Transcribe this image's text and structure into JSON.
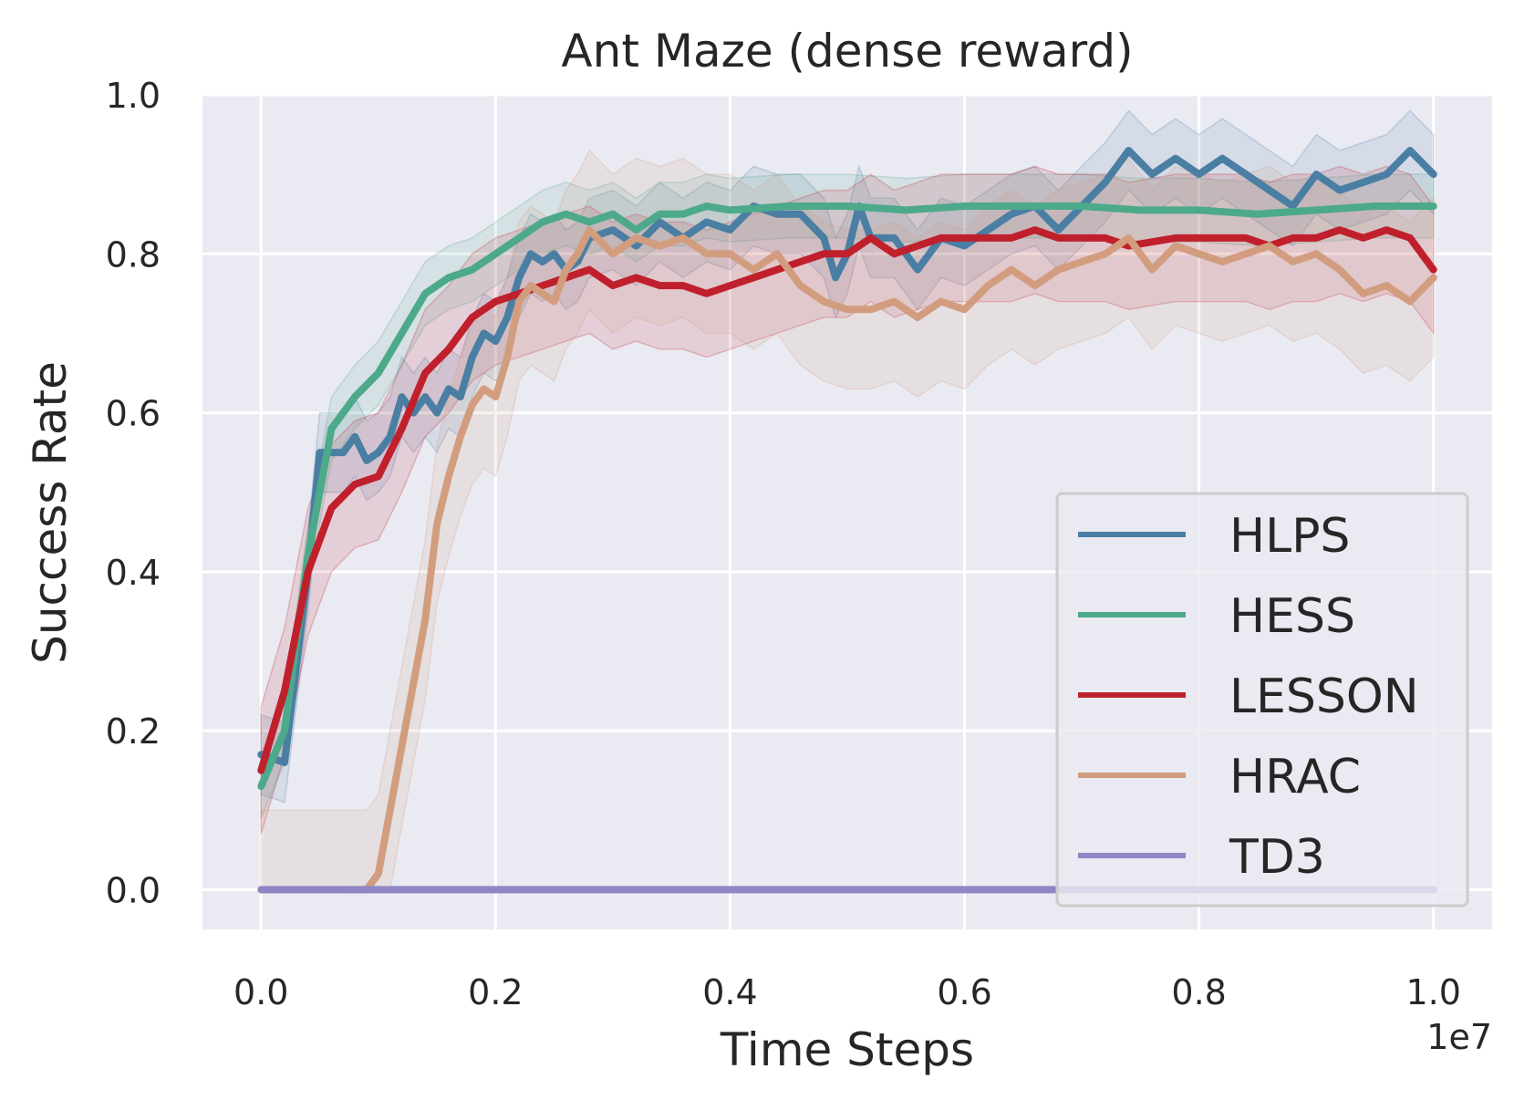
{
  "chart_data": {
    "type": "line",
    "title": "Ant Maze (dense reward)",
    "xlabel": "Time Steps",
    "ylabel": "Success Rate",
    "x_offset_text": "1e7",
    "xlim": [
      -0.05,
      1.05
    ],
    "ylim": [
      -0.05,
      1.0
    ],
    "xticks": [
      0.0,
      0.2,
      0.4,
      0.6,
      0.8,
      1.0
    ],
    "xtick_labels": [
      "0.0",
      "0.2",
      "0.4",
      "0.6",
      "0.8",
      "1.0"
    ],
    "yticks": [
      0.0,
      0.2,
      0.4,
      0.6,
      0.8,
      1.0
    ],
    "ytick_labels": [
      "0.0",
      "0.2",
      "0.4",
      "0.6",
      "0.8",
      "1.0"
    ],
    "grid": true,
    "legend_position": "lower-right",
    "series": [
      {
        "name": "HLPS",
        "color": "#4a7fa3",
        "x": [
          0.0,
          0.02,
          0.04,
          0.05,
          0.06,
          0.07,
          0.08,
          0.09,
          0.1,
          0.11,
          0.12,
          0.13,
          0.14,
          0.15,
          0.16,
          0.17,
          0.18,
          0.19,
          0.2,
          0.21,
          0.22,
          0.23,
          0.24,
          0.25,
          0.26,
          0.27,
          0.28,
          0.3,
          0.32,
          0.34,
          0.36,
          0.38,
          0.4,
          0.42,
          0.44,
          0.46,
          0.48,
          0.49,
          0.5,
          0.51,
          0.52,
          0.54,
          0.56,
          0.58,
          0.6,
          0.62,
          0.64,
          0.66,
          0.68,
          0.7,
          0.72,
          0.74,
          0.76,
          0.78,
          0.8,
          0.82,
          0.84,
          0.86,
          0.88,
          0.9,
          0.92,
          0.94,
          0.96,
          0.98,
          1.0
        ],
        "y": [
          0.17,
          0.16,
          0.4,
          0.55,
          0.55,
          0.55,
          0.57,
          0.54,
          0.55,
          0.57,
          0.62,
          0.6,
          0.62,
          0.6,
          0.63,
          0.62,
          0.67,
          0.7,
          0.69,
          0.72,
          0.77,
          0.8,
          0.79,
          0.8,
          0.78,
          0.79,
          0.82,
          0.83,
          0.81,
          0.84,
          0.82,
          0.84,
          0.83,
          0.86,
          0.85,
          0.85,
          0.82,
          0.77,
          0.8,
          0.86,
          0.82,
          0.82,
          0.78,
          0.82,
          0.81,
          0.83,
          0.85,
          0.86,
          0.83,
          0.86,
          0.89,
          0.93,
          0.9,
          0.92,
          0.9,
          0.92,
          0.9,
          0.88,
          0.86,
          0.9,
          0.88,
          0.89,
          0.9,
          0.93,
          0.9
        ],
        "band_width": 0.05
      },
      {
        "name": "HESS",
        "color": "#4ca989",
        "x": [
          0.0,
          0.02,
          0.04,
          0.06,
          0.08,
          0.1,
          0.12,
          0.14,
          0.16,
          0.18,
          0.2,
          0.22,
          0.24,
          0.26,
          0.28,
          0.3,
          0.32,
          0.34,
          0.36,
          0.38,
          0.4,
          0.45,
          0.5,
          0.55,
          0.6,
          0.65,
          0.7,
          0.75,
          0.8,
          0.85,
          0.9,
          0.95,
          1.0
        ],
        "y": [
          0.13,
          0.2,
          0.42,
          0.58,
          0.62,
          0.65,
          0.7,
          0.75,
          0.77,
          0.78,
          0.8,
          0.82,
          0.84,
          0.85,
          0.84,
          0.85,
          0.83,
          0.85,
          0.85,
          0.86,
          0.855,
          0.86,
          0.86,
          0.855,
          0.86,
          0.86,
          0.86,
          0.855,
          0.855,
          0.85,
          0.855,
          0.86,
          0.86
        ],
        "band_width": 0.04
      },
      {
        "name": "LESSON",
        "color": "#c0202c",
        "x": [
          0.0,
          0.02,
          0.04,
          0.06,
          0.08,
          0.1,
          0.12,
          0.14,
          0.16,
          0.18,
          0.2,
          0.22,
          0.24,
          0.26,
          0.28,
          0.3,
          0.32,
          0.34,
          0.36,
          0.38,
          0.4,
          0.42,
          0.44,
          0.46,
          0.48,
          0.5,
          0.52,
          0.54,
          0.56,
          0.58,
          0.6,
          0.62,
          0.64,
          0.66,
          0.68,
          0.7,
          0.72,
          0.74,
          0.76,
          0.78,
          0.8,
          0.82,
          0.84,
          0.86,
          0.88,
          0.9,
          0.92,
          0.94,
          0.96,
          0.98,
          1.0
        ],
        "y": [
          0.15,
          0.25,
          0.4,
          0.48,
          0.51,
          0.52,
          0.58,
          0.65,
          0.68,
          0.72,
          0.74,
          0.75,
          0.76,
          0.77,
          0.78,
          0.76,
          0.77,
          0.76,
          0.76,
          0.75,
          0.76,
          0.77,
          0.78,
          0.79,
          0.8,
          0.8,
          0.82,
          0.8,
          0.81,
          0.82,
          0.82,
          0.82,
          0.82,
          0.83,
          0.82,
          0.82,
          0.82,
          0.81,
          0.815,
          0.82,
          0.82,
          0.82,
          0.82,
          0.81,
          0.82,
          0.82,
          0.83,
          0.82,
          0.83,
          0.82,
          0.78
        ],
        "band_width": 0.08
      },
      {
        "name": "HRAC",
        "color": "#d29d7f",
        "x": [
          0.0,
          0.09,
          0.1,
          0.11,
          0.12,
          0.13,
          0.14,
          0.15,
          0.16,
          0.17,
          0.18,
          0.19,
          0.2,
          0.21,
          0.22,
          0.23,
          0.24,
          0.25,
          0.26,
          0.27,
          0.28,
          0.3,
          0.32,
          0.34,
          0.36,
          0.38,
          0.4,
          0.42,
          0.44,
          0.46,
          0.48,
          0.5,
          0.52,
          0.54,
          0.56,
          0.58,
          0.6,
          0.62,
          0.64,
          0.66,
          0.68,
          0.7,
          0.72,
          0.74,
          0.76,
          0.78,
          0.8,
          0.82,
          0.84,
          0.86,
          0.88,
          0.9,
          0.92,
          0.94,
          0.96,
          0.98,
          1.0
        ],
        "y": [
          0.0,
          0.0,
          0.02,
          0.1,
          0.18,
          0.26,
          0.34,
          0.46,
          0.52,
          0.57,
          0.61,
          0.63,
          0.62,
          0.67,
          0.74,
          0.76,
          0.75,
          0.74,
          0.78,
          0.8,
          0.83,
          0.8,
          0.82,
          0.81,
          0.82,
          0.8,
          0.8,
          0.78,
          0.8,
          0.76,
          0.74,
          0.73,
          0.73,
          0.74,
          0.72,
          0.74,
          0.73,
          0.76,
          0.78,
          0.76,
          0.78,
          0.79,
          0.8,
          0.82,
          0.78,
          0.81,
          0.8,
          0.79,
          0.8,
          0.81,
          0.79,
          0.8,
          0.78,
          0.75,
          0.76,
          0.74,
          0.77
        ],
        "band_width": 0.1
      },
      {
        "name": "TD3",
        "color": "#8f86c4",
        "x": [
          0.0,
          1.0
        ],
        "y": [
          0.0,
          0.0
        ],
        "band_width": 0.0
      }
    ]
  }
}
